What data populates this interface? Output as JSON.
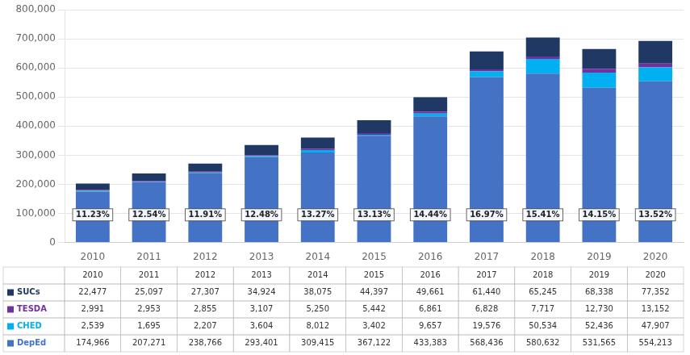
{
  "chart_data": {
    "type": "bar",
    "stacked": true,
    "categories": [
      "2010",
      "2011",
      "2012",
      "2013",
      "2014",
      "2015",
      "2016",
      "2017",
      "2018",
      "2019",
      "2020"
    ],
    "series": [
      {
        "name": "DepEd",
        "color": "#4472C4",
        "values": [
          174966,
          207271,
          238766,
          293401,
          309415,
          367122,
          433383,
          568436,
          580632,
          531565,
          554213
        ]
      },
      {
        "name": "CHED",
        "color": "#00B0F0",
        "values": [
          2539,
          1695,
          2207,
          3604,
          8012,
          3402,
          9657,
          19576,
          50534,
          52436,
          47907
        ]
      },
      {
        "name": "TESDA",
        "color": "#7030A0",
        "values": [
          2991,
          2953,
          2855,
          3107,
          5250,
          5442,
          6861,
          6828,
          7717,
          12730,
          13152
        ]
      },
      {
        "name": "SUCs",
        "color": "#1F3864",
        "values": [
          22477,
          25097,
          27307,
          34924,
          38075,
          44397,
          49661,
          61440,
          65245,
          68338,
          77352
        ]
      }
    ],
    "annotations": [
      "11.23%",
      "12.54%",
      "11.91%",
      "12.48%",
      "13.27%",
      "13.13%",
      "14.44%",
      "16.97%",
      "15.41%",
      "14.15%",
      "13.52%"
    ],
    "ylim": [
      0,
      800000
    ],
    "yticks": [
      0,
      {
        "value": 100000,
        "label": "100,000"
      },
      {
        "value": 200000,
        "label": "200,000"
      },
      {
        "value": 300000,
        "label": "300,000"
      },
      {
        "value": 400000,
        "label": "400,000"
      },
      {
        "value": 500000,
        "label": "500,000"
      },
      {
        "value": 600000,
        "label": "600,000"
      },
      {
        "value": 700000,
        "label": "700,000"
      },
      {
        "value": 800000,
        "label": "800,000"
      }
    ],
    "grid": true
  }
}
